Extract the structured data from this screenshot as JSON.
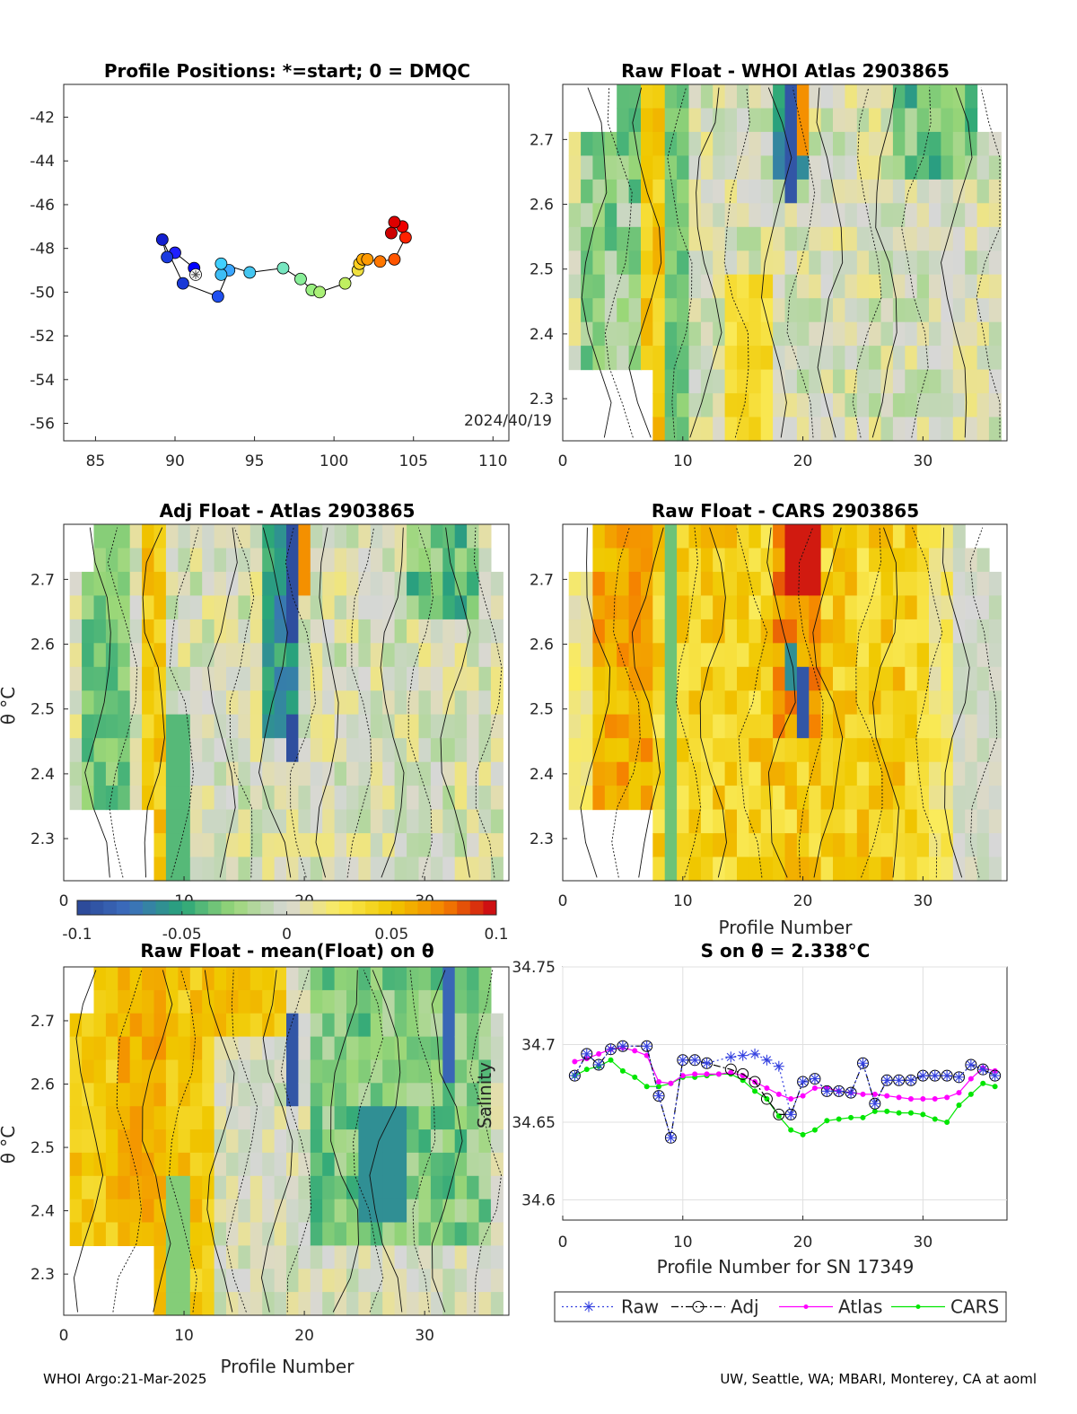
{
  "footer": {
    "left": "WHOI Argo:21-Mar-2025",
    "right": "UW, Seattle, WA; MBARI, Monterey, CA at aoml"
  },
  "colormap": {
    "name": "parula-like diverging",
    "ticks": [
      "-0.1",
      "-0.05",
      "0",
      "0.05",
      "0.1"
    ],
    "range": [
      -0.1,
      0.1
    ]
  },
  "chart_data": [
    {
      "id": "positions",
      "type": "scatter",
      "title": "Profile Positions: *=start; 0 = DMQC",
      "date_label": "2024/40/19",
      "xlim": [
        83,
        111
      ],
      "ylim": [
        -56.8,
        -40.5
      ],
      "xticks": [
        "85",
        "90",
        "95",
        "100",
        "105",
        "110"
      ],
      "yticks": [
        "-42",
        "-44",
        "-46",
        "-48",
        "-50",
        "-52",
        "-54",
        "-56"
      ],
      "start": [
        91.3,
        -49.2
      ],
      "points": [
        [
          91.3,
          -49.2
        ],
        [
          91.2,
          -48.9
        ],
        [
          90.0,
          -48.2
        ],
        [
          89.5,
          -48.4
        ],
        [
          89.2,
          -47.6
        ],
        [
          90.5,
          -49.6
        ],
        [
          92.7,
          -50.2
        ],
        [
          93.4,
          -49.0
        ],
        [
          92.9,
          -49.2
        ],
        [
          92.9,
          -48.7
        ],
        [
          94.7,
          -49.1
        ],
        [
          96.8,
          -48.9
        ],
        [
          97.9,
          -49.4
        ],
        [
          98.6,
          -49.9
        ],
        [
          99.1,
          -50.0
        ],
        [
          100.7,
          -49.6
        ],
        [
          101.5,
          -49.0
        ],
        [
          101.6,
          -48.7
        ],
        [
          101.8,
          -48.5
        ],
        [
          102.1,
          -48.5
        ],
        [
          102.9,
          -48.6
        ],
        [
          103.8,
          -48.5
        ],
        [
          104.5,
          -47.5
        ],
        [
          104.3,
          -47.0
        ],
        [
          103.8,
          -46.8
        ],
        [
          103.6,
          -47.3
        ]
      ],
      "colors": [
        "#e8ffff",
        "#0000ff",
        "#1f1fff",
        "#1a3adf",
        "#1320cf",
        "#1a3ad6",
        "#1f4fef",
        "#3aa6ff",
        "#3dbdf5",
        "#40cfff",
        "#44c6f0",
        "#77e6c0",
        "#88ee98",
        "#99f080",
        "#aaf077",
        "#c0f060",
        "#f0e040",
        "#ffd020",
        "#ffaa00",
        "#ff9900",
        "#ff7700",
        "#ff5500",
        "#ff2200",
        "#ee0000",
        "#dd0000",
        "#cc0000"
      ]
    },
    {
      "id": "raw-atlas",
      "type": "heatmap",
      "title": "Raw Float - WHOI Atlas  2903865",
      "xlim": [
        0,
        37
      ],
      "ylim": [
        2.235,
        2.785
      ],
      "xticks": [
        "0",
        "10",
        "20",
        "30"
      ],
      "yticks": [
        "2.3",
        "2.4",
        "2.5",
        "2.6",
        "2.7"
      ],
      "xlabel": "",
      "ylabel": ""
    },
    {
      "id": "adj-atlas",
      "type": "heatmap",
      "title": "Adj Float - Atlas  2903865",
      "xlim": [
        0,
        37
      ],
      "ylim": [
        2.235,
        2.785
      ],
      "xticks": [
        "0",
        "10",
        "20",
        "30"
      ],
      "yticks": [
        "2.3",
        "2.4",
        "2.5",
        "2.6",
        "2.7"
      ],
      "xlabel": "",
      "ylabel": "θ °C"
    },
    {
      "id": "raw-cars",
      "type": "heatmap",
      "title": "Raw Float - CARS  2903865",
      "xlim": [
        0,
        37
      ],
      "ylim": [
        2.235,
        2.785
      ],
      "xticks": [
        "0",
        "10",
        "20",
        "30"
      ],
      "yticks": [
        "2.3",
        "2.4",
        "2.5",
        "2.6",
        "2.7"
      ],
      "xlabel": "Profile Number",
      "ylabel": ""
    },
    {
      "id": "raw-mean",
      "type": "heatmap",
      "title": "Raw Float - mean(Float) on θ",
      "xlim": [
        0,
        37
      ],
      "ylim": [
        2.235,
        2.785
      ],
      "xticks": [
        "0",
        "10",
        "20",
        "30"
      ],
      "yticks": [
        "2.3",
        "2.4",
        "2.5",
        "2.6",
        "2.7"
      ],
      "xlabel": "Profile Number",
      "ylabel": "θ °C"
    },
    {
      "id": "salinity",
      "type": "line",
      "title": "S on θ = 2.338°C",
      "xlabel": "Profile Number for SN 17349",
      "ylabel": "Salinity",
      "xlim": [
        0,
        37
      ],
      "ylim": [
        34.587,
        34.75
      ],
      "xticks": [
        "0",
        "10",
        "20",
        "30"
      ],
      "yticks": [
        "34.6",
        "34.65",
        "34.7",
        "34.75"
      ],
      "grid": true,
      "legend": "bottom",
      "series": [
        {
          "name": "Raw",
          "color": "#3340e0",
          "x": [
            1,
            2,
            3,
            4,
            5,
            7,
            8,
            9,
            10,
            11,
            12,
            14,
            15,
            16,
            17,
            18,
            19,
            20,
            21,
            22,
            23,
            24,
            25,
            26,
            27,
            28,
            29,
            30,
            31,
            32,
            33,
            34,
            35,
            36
          ],
          "y": [
            34.68,
            34.694,
            34.687,
            34.697,
            34.699,
            34.699,
            34.667,
            34.64,
            34.69,
            34.69,
            34.688,
            34.692,
            34.693,
            34.694,
            34.69,
            34.686,
            34.655,
            34.676,
            34.678,
            34.67,
            34.67,
            34.669,
            34.688,
            34.662,
            34.677,
            34.677,
            34.677,
            34.68,
            34.68,
            34.68,
            34.679,
            34.687,
            34.684,
            34.68
          ]
        },
        {
          "name": "Adj",
          "color": "#000000",
          "x": [
            1,
            2,
            3,
            4,
            5,
            7,
            8,
            9,
            10,
            11,
            12,
            14,
            15,
            16,
            17,
            18,
            19,
            20,
            21,
            22,
            23,
            24,
            25,
            26,
            27,
            28,
            29,
            30,
            31,
            32,
            33,
            34,
            35,
            36
          ],
          "y": [
            34.68,
            34.694,
            34.687,
            34.697,
            34.699,
            34.699,
            34.667,
            34.64,
            34.69,
            34.69,
            34.688,
            34.684,
            34.681,
            34.676,
            34.665,
            34.655,
            34.655,
            34.676,
            34.678,
            34.67,
            34.67,
            34.669,
            34.688,
            34.662,
            34.677,
            34.677,
            34.677,
            34.68,
            34.68,
            34.68,
            34.679,
            34.687,
            34.684,
            34.68
          ]
        },
        {
          "name": "Atlas",
          "color": "#ff00ff",
          "x": [
            1,
            2,
            3,
            4,
            5,
            6,
            7,
            8,
            9,
            10,
            11,
            12,
            13,
            14,
            15,
            16,
            17,
            18,
            19,
            20,
            21,
            22,
            23,
            24,
            25,
            26,
            27,
            28,
            29,
            30,
            31,
            32,
            33,
            34,
            35,
            36
          ],
          "y": [
            34.689,
            34.691,
            34.694,
            34.697,
            34.698,
            34.696,
            34.693,
            34.676,
            34.675,
            34.68,
            34.681,
            34.681,
            34.681,
            34.682,
            34.68,
            34.676,
            34.672,
            34.668,
            34.665,
            34.667,
            34.672,
            34.672,
            34.67,
            34.669,
            34.668,
            34.668,
            34.667,
            34.666,
            34.665,
            34.665,
            34.665,
            34.666,
            34.669,
            34.678,
            34.685,
            34.683
          ]
        },
        {
          "name": "CARS",
          "color": "#00e600",
          "x": [
            1,
            2,
            3,
            4,
            5,
            6,
            7,
            8,
            9,
            10,
            11,
            12,
            13,
            14,
            15,
            16,
            17,
            18,
            19,
            20,
            21,
            22,
            23,
            24,
            25,
            26,
            27,
            28,
            29,
            30,
            31,
            32,
            33,
            34,
            35,
            36
          ],
          "y": [
            34.68,
            34.684,
            34.686,
            34.69,
            34.683,
            34.679,
            34.673,
            34.673,
            34.675,
            34.679,
            34.679,
            34.68,
            34.681,
            34.681,
            34.677,
            34.67,
            34.665,
            34.654,
            34.645,
            34.642,
            34.645,
            34.651,
            34.652,
            34.653,
            34.653,
            34.657,
            34.657,
            34.656,
            34.656,
            34.655,
            34.652,
            34.65,
            34.661,
            34.668,
            34.675,
            34.673
          ]
        }
      ]
    }
  ]
}
